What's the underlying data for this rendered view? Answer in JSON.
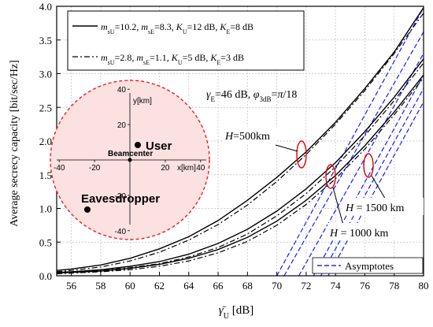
{
  "chart_data": {
    "type": "line",
    "xlabel": "γ̄U [dB]",
    "ylabel": "Average secrecy capacity [bit/sec/Hz]",
    "xlim": [
      55,
      80
    ],
    "ylim": [
      0,
      4.0
    ],
    "x_ticks": [
      56,
      58,
      60,
      62,
      64,
      66,
      68,
      70,
      72,
      74,
      76,
      78,
      80
    ],
    "y_ticks": [
      0.0,
      0.5,
      1.0,
      1.5,
      2.0,
      2.5,
      3.0,
      3.5,
      4.0
    ],
    "grid": true,
    "legend": {
      "position": "top-left",
      "entries": [
        {
          "style": "solid",
          "label": "msU=10.2, msE=8.3, KU=12 dB, KE=8 dB"
        },
        {
          "style": "dashdot",
          "label": "msU=2.8, msE=1.1, KU=5 dB, KE=3 dB"
        }
      ],
      "asymptote_label": "Asymptotes"
    },
    "params_text": "γE=46 dB, φ3dB=π/18",
    "annotations": [
      {
        "text": "H=500km",
        "x": 72.0,
        "y": 1.72
      },
      {
        "text": "H = 1000 km",
        "x": 73.8,
        "y": 1.25
      },
      {
        "text": "H = 1500 km",
        "x": 76.4,
        "y": 1.4
      }
    ],
    "series": [
      {
        "style": "solid",
        "x": [
          55,
          56,
          58,
          60,
          62,
          64,
          66,
          68,
          70,
          72,
          74,
          76,
          78,
          80
        ],
        "y": [
          0.08,
          0.1,
          0.16,
          0.26,
          0.4,
          0.58,
          0.82,
          1.12,
          1.46,
          1.84,
          2.28,
          2.78,
          3.32,
          3.98
        ]
      },
      {
        "style": "solid",
        "x": [
          55,
          56,
          58,
          60,
          62,
          64,
          66,
          68,
          70,
          72,
          74,
          76,
          78,
          80
        ],
        "y": [
          0.05,
          0.06,
          0.09,
          0.14,
          0.21,
          0.32,
          0.48,
          0.69,
          0.96,
          1.29,
          1.68,
          2.14,
          2.65,
          3.22
        ]
      },
      {
        "style": "solid",
        "x": [
          55,
          56,
          58,
          60,
          62,
          64,
          66,
          68,
          70,
          72,
          74,
          76,
          78,
          80
        ],
        "y": [
          0.04,
          0.05,
          0.07,
          0.11,
          0.17,
          0.26,
          0.39,
          0.57,
          0.81,
          1.12,
          1.49,
          1.93,
          2.43,
          2.98
        ]
      },
      {
        "style": "dashdot",
        "x": [
          55,
          56,
          58,
          60,
          62,
          64,
          66,
          68,
          70,
          72,
          74,
          76,
          78,
          80
        ],
        "y": [
          0.06,
          0.08,
          0.13,
          0.22,
          0.35,
          0.53,
          0.76,
          1.05,
          1.4,
          1.8,
          2.25,
          2.75,
          3.3,
          3.9
        ]
      },
      {
        "style": "dashdot",
        "x": [
          55,
          56,
          58,
          60,
          62,
          64,
          66,
          68,
          70,
          72,
          74,
          76,
          78,
          80
        ],
        "y": [
          0.04,
          0.05,
          0.08,
          0.12,
          0.18,
          0.28,
          0.42,
          0.62,
          0.89,
          1.22,
          1.62,
          2.08,
          2.6,
          3.16
        ]
      },
      {
        "style": "dashdot",
        "x": [
          55,
          56,
          58,
          60,
          62,
          64,
          66,
          68,
          70,
          72,
          74,
          76,
          78,
          80
        ],
        "y": [
          0.03,
          0.04,
          0.06,
          0.09,
          0.14,
          0.22,
          0.34,
          0.51,
          0.75,
          1.06,
          1.44,
          1.88,
          2.39,
          2.94
        ]
      },
      {
        "style": "asymptote",
        "x": [
          70.0,
          80
        ],
        "y": [
          0.0,
          3.98
        ]
      },
      {
        "style": "asymptote",
        "x": [
          70.5,
          80
        ],
        "y": [
          0.0,
          3.62
        ]
      },
      {
        "style": "asymptote",
        "x": [
          71.5,
          80
        ],
        "y": [
          0.0,
          3.3
        ]
      },
      {
        "style": "asymptote",
        "x": [
          72.5,
          80
        ],
        "y": [
          0.0,
          2.98
        ]
      },
      {
        "style": "asymptote",
        "x": [
          73.0,
          80
        ],
        "y": [
          0.0,
          2.78
        ]
      },
      {
        "style": "asymptote",
        "x": [
          73.5,
          80
        ],
        "y": [
          0.0,
          2.58
        ]
      }
    ],
    "inset": {
      "type": "scatter",
      "x_ticks": [
        -40,
        -20,
        20,
        40
      ],
      "y_ticks": [
        40,
        20,
        -20,
        -40
      ],
      "xlabel": "x[km]",
      "ylabel": "y[km]",
      "points": [
        {
          "label": "User",
          "x": 5,
          "y": 10
        },
        {
          "label": "Beamcenter",
          "x": 0,
          "y": 0
        },
        {
          "label": "Eavesdropper",
          "x": -36,
          "y": -38
        }
      ]
    }
  }
}
